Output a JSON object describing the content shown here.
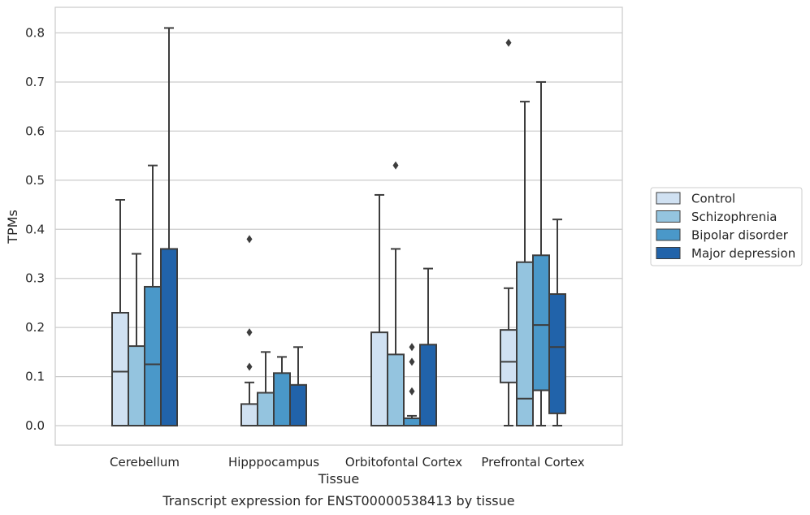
{
  "chart_data": {
    "type": "box",
    "caption": "Transcript expression for ENST00000538413 by tissue",
    "xlabel": "Tissue",
    "ylabel": "TPMs",
    "ylim": [
      -0.04,
      0.85
    ],
    "yticks": [
      "0.0",
      "0.1",
      "0.2",
      "0.3",
      "0.4",
      "0.5",
      "0.6",
      "0.7",
      "0.8"
    ],
    "grid": true,
    "legend_position": "right",
    "categories": [
      "Cerebellum",
      "Hipppocampus",
      "Orbitofontal Cortex",
      "Prefrontal Cortex"
    ],
    "series": [
      {
        "name": "Control",
        "color": "#d0e1f2",
        "boxes": [
          {
            "min": 0.0,
            "q1": 0.0,
            "median": 0.11,
            "q3": 0.23,
            "max": 0.46,
            "outliers": []
          },
          {
            "min": 0.0,
            "q1": 0.0,
            "median": 0.0,
            "q3": 0.044,
            "max": 0.088,
            "outliers": [
              0.12,
              0.19,
              0.38
            ]
          },
          {
            "min": 0.0,
            "q1": 0.0,
            "median": 0.0,
            "q3": 0.19,
            "max": 0.47,
            "outliers": []
          },
          {
            "min": 0.0,
            "q1": 0.088,
            "median": 0.13,
            "q3": 0.195,
            "max": 0.28,
            "outliers": [
              0.78
            ]
          }
        ]
      },
      {
        "name": "Schizophrenia",
        "color": "#94c4df",
        "boxes": [
          {
            "min": 0.0,
            "q1": 0.0,
            "median": 0.0,
            "q3": 0.162,
            "max": 0.35,
            "outliers": []
          },
          {
            "min": 0.0,
            "q1": 0.0,
            "median": 0.0,
            "q3": 0.067,
            "max": 0.15,
            "outliers": []
          },
          {
            "min": 0.0,
            "q1": 0.0,
            "median": 0.0,
            "q3": 0.145,
            "max": 0.36,
            "outliers": [
              0.53
            ]
          },
          {
            "min": 0.0,
            "q1": 0.0,
            "median": 0.055,
            "q3": 0.333,
            "max": 0.66,
            "outliers": []
          }
        ]
      },
      {
        "name": "Bipolar disorder",
        "color": "#4a98c9",
        "boxes": [
          {
            "min": 0.0,
            "q1": 0.0,
            "median": 0.125,
            "q3": 0.283,
            "max": 0.53,
            "outliers": []
          },
          {
            "min": 0.0,
            "q1": 0.0,
            "median": 0.0,
            "q3": 0.107,
            "max": 0.14,
            "outliers": []
          },
          {
            "min": 0.0,
            "q1": 0.0,
            "median": 0.0,
            "q3": 0.015,
            "max": 0.02,
            "outliers": [
              0.07,
              0.13,
              0.16
            ]
          },
          {
            "min": 0.0,
            "q1": 0.072,
            "median": 0.205,
            "q3": 0.347,
            "max": 0.7,
            "outliers": []
          }
        ]
      },
      {
        "name": "Major depression",
        "color": "#2163aa",
        "boxes": [
          {
            "min": 0.0,
            "q1": 0.0,
            "median": 0.0,
            "q3": 0.36,
            "max": 0.81,
            "outliers": []
          },
          {
            "min": 0.0,
            "q1": 0.0,
            "median": 0.0,
            "q3": 0.083,
            "max": 0.16,
            "outliers": []
          },
          {
            "min": 0.0,
            "q1": 0.0,
            "median": 0.0,
            "q3": 0.165,
            "max": 0.32,
            "outliers": []
          },
          {
            "min": 0.0,
            "q1": 0.025,
            "median": 0.16,
            "q3": 0.268,
            "max": 0.42,
            "outliers": []
          }
        ]
      }
    ]
  }
}
